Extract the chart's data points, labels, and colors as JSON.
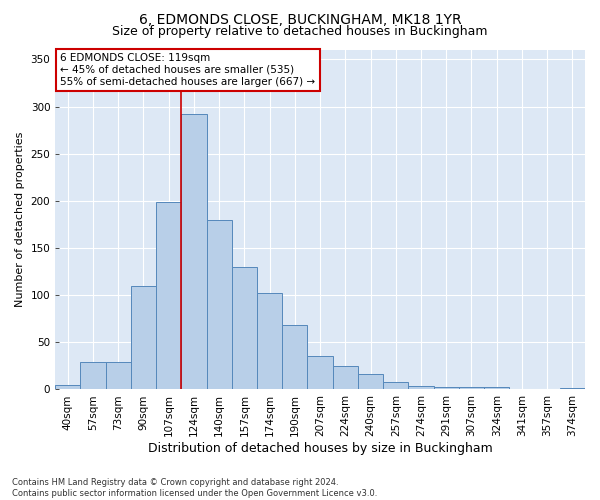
{
  "title1": "6, EDMONDS CLOSE, BUCKINGHAM, MK18 1YR",
  "title2": "Size of property relative to detached houses in Buckingham",
  "xlabel": "Distribution of detached houses by size in Buckingham",
  "ylabel": "Number of detached properties",
  "footnote": "Contains HM Land Registry data © Crown copyright and database right 2024.\nContains public sector information licensed under the Open Government Licence v3.0.",
  "categories": [
    "40sqm",
    "57sqm",
    "73sqm",
    "90sqm",
    "107sqm",
    "124sqm",
    "140sqm",
    "157sqm",
    "174sqm",
    "190sqm",
    "207sqm",
    "224sqm",
    "240sqm",
    "257sqm",
    "274sqm",
    "291sqm",
    "307sqm",
    "324sqm",
    "341sqm",
    "357sqm",
    "374sqm"
  ],
  "values": [
    5,
    29,
    29,
    110,
    199,
    292,
    180,
    130,
    102,
    68,
    36,
    25,
    16,
    8,
    4,
    3,
    3,
    3,
    1,
    0,
    2
  ],
  "bar_color": "#b8cfe8",
  "bar_edge_color": "#5588bb",
  "vline_x_index": 5,
  "vline_color": "#cc0000",
  "annotation_text": "6 EDMONDS CLOSE: 119sqm\n← 45% of detached houses are smaller (535)\n55% of semi-detached houses are larger (667) →",
  "annotation_box_color": "#ffffff",
  "annotation_box_edge": "#cc0000",
  "background_color": "#dde8f5",
  "ylim": [
    0,
    360
  ],
  "yticks": [
    0,
    50,
    100,
    150,
    200,
    250,
    300,
    350
  ],
  "title1_fontsize": 10,
  "title2_fontsize": 9,
  "xlabel_fontsize": 9,
  "ylabel_fontsize": 8,
  "tick_fontsize": 7.5,
  "annot_fontsize": 7.5,
  "footnote_fontsize": 6
}
